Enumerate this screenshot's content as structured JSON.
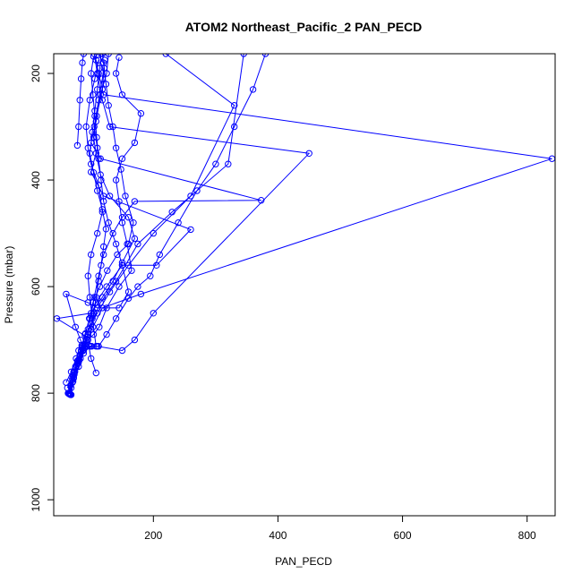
{
  "chart_data": {
    "type": "line",
    "title": "ATOM2 Northeast_Pacific_2 PAN_PECD",
    "xlabel": "PAN_PECD",
    "ylabel": "Pressure (mbar)",
    "x_ticks": [
      "200",
      "400",
      "600",
      "800"
    ],
    "y_ticks": [
      "200",
      "400",
      "600",
      "800",
      "1000"
    ],
    "xlim": [
      40,
      845
    ],
    "ylim": [
      1030,
      163
    ],
    "y_reversed": true,
    "line_color": "#0000ff",
    "marker": "open-circle",
    "grid": false,
    "legend": false,
    "series": [
      {
        "points": [
          [
            65,
            800
          ],
          [
            68,
            790
          ],
          [
            72,
            760
          ],
          [
            78,
            740
          ],
          [
            85,
            710
          ],
          [
            95,
            680
          ],
          [
            110,
            650
          ],
          [
            130,
            610
          ],
          [
            160,
            560
          ],
          [
            200,
            500
          ],
          [
            260,
            430
          ],
          [
            330,
            260
          ],
          [
            220,
            163
          ]
        ]
      },
      {
        "points": [
          [
            67,
            803
          ],
          [
            70,
            780
          ],
          [
            75,
            750
          ],
          [
            80,
            720
          ],
          [
            92,
            700
          ],
          [
            100,
            670
          ],
          [
            115,
            630
          ],
          [
            140,
            590
          ],
          [
            175,
            520
          ],
          [
            230,
            460
          ],
          [
            320,
            370
          ],
          [
            345,
            163
          ]
        ]
      },
      {
        "points": [
          [
            66,
            802
          ],
          [
            72,
            770
          ],
          [
            78,
            745
          ],
          [
            85,
            715
          ],
          [
            90,
            690
          ],
          [
            98,
            660
          ],
          [
            108,
            630
          ],
          [
            125,
            600
          ],
          [
            150,
            560
          ],
          [
            205,
            560
          ],
          [
            260,
            493
          ],
          [
            120,
            430
          ],
          [
            100,
            385
          ],
          [
            110,
            340
          ],
          [
            105,
            300
          ],
          [
            112,
            250
          ],
          [
            118,
            210
          ],
          [
            122,
            175
          ]
        ]
      },
      {
        "points": [
          [
            64,
            800
          ],
          [
            70,
            775
          ],
          [
            76,
            752
          ],
          [
            82,
            728
          ],
          [
            90,
            712
          ],
          [
            95,
            690
          ],
          [
            100,
            655
          ],
          [
            105,
            620
          ],
          [
            112,
            580
          ],
          [
            120,
            540
          ],
          [
            135,
            500
          ],
          [
            150,
            470
          ],
          [
            170,
            440
          ],
          [
            373,
            438
          ],
          [
            115,
            360
          ],
          [
            100,
            330
          ],
          [
            108,
            290
          ],
          [
            115,
            240
          ],
          [
            125,
            200
          ],
          [
            128,
            163
          ]
        ]
      },
      {
        "points": [
          [
            68,
            803
          ],
          [
            73,
            765
          ],
          [
            79,
            738
          ],
          [
            86,
            712
          ],
          [
            91,
            688
          ],
          [
            97,
            660
          ],
          [
            103,
            630
          ],
          [
            114,
            600
          ],
          [
            126,
            570
          ],
          [
            142,
            540
          ],
          [
            160,
            520
          ],
          [
            168,
            480
          ],
          [
            155,
            430
          ],
          [
            148,
            380
          ],
          [
            140,
            340
          ],
          [
            135,
            300
          ],
          [
            128,
            260
          ],
          [
            124,
            220
          ],
          [
            120,
            180
          ]
        ]
      },
      {
        "points": [
          [
            63,
            800
          ],
          [
            69,
            770
          ],
          [
            77,
            748
          ],
          [
            84,
            720
          ],
          [
            93,
            700
          ],
          [
            103,
            676
          ],
          [
            118,
            640
          ],
          [
            180,
            614
          ],
          [
            840,
            360
          ],
          [
            120,
            240
          ],
          [
            112,
            200
          ],
          [
            108,
            175
          ]
        ]
      },
      {
        "points": [
          [
            66,
            801
          ],
          [
            71,
            778
          ],
          [
            80,
            750
          ],
          [
            88,
            725
          ],
          [
            99,
            712
          ],
          [
            110,
            712
          ],
          [
            150,
            720
          ],
          [
            170,
            700
          ],
          [
            200,
            650
          ],
          [
            450,
            350
          ],
          [
            130,
            300
          ],
          [
            118,
            250
          ],
          [
            110,
            200
          ],
          [
            105,
            163
          ]
        ]
      },
      {
        "points": [
          [
            65,
            802
          ],
          [
            74,
            760
          ],
          [
            83,
            735
          ],
          [
            92,
            712
          ],
          [
            101,
            712
          ],
          [
            112,
            712
          ],
          [
            125,
            690
          ],
          [
            140,
            660
          ],
          [
            160,
            622
          ],
          [
            175,
            600
          ],
          [
            195,
            580
          ],
          [
            210,
            540
          ],
          [
            240,
            480
          ],
          [
            270,
            420
          ],
          [
            300,
            370
          ],
          [
            330,
            300
          ],
          [
            360,
            230
          ],
          [
            380,
            163
          ]
        ]
      },
      {
        "points": [
          [
            60,
            780
          ],
          [
            68,
            760
          ],
          [
            76,
            735
          ],
          [
            86,
            712
          ],
          [
            97,
            712
          ],
          [
            108,
            712
          ],
          [
            102,
            660
          ],
          [
            98,
            620
          ],
          [
            95,
            580
          ],
          [
            100,
            540
          ],
          [
            110,
            500
          ],
          [
            118,
            460
          ],
          [
            112,
            410
          ],
          [
            100,
            370
          ],
          [
            95,
            340
          ],
          [
            92,
            300
          ],
          [
            98,
            250
          ],
          [
            106,
            210
          ],
          [
            112,
            175
          ]
        ]
      },
      {
        "points": [
          [
            62,
            790
          ],
          [
            71,
            768
          ],
          [
            80,
            742
          ],
          [
            88,
            720
          ],
          [
            83,
            700
          ],
          [
            75,
            676
          ],
          [
            60,
            614
          ],
          [
            95,
            630
          ],
          [
            110,
            640
          ],
          [
            145,
            640
          ],
          [
            160,
            610
          ],
          [
            150,
            560
          ],
          [
            140,
            520
          ],
          [
            128,
            480
          ],
          [
            120,
            440
          ],
          [
            116,
            400
          ],
          [
            112,
            360
          ],
          [
            109,
            320
          ],
          [
            106,
            280
          ],
          [
            103,
            240
          ],
          [
            100,
            200
          ],
          [
            104,
            168
          ]
        ]
      },
      {
        "points": [
          [
            64,
            800
          ],
          [
            67,
            785
          ],
          [
            73,
            762
          ],
          [
            81,
            738
          ],
          [
            89,
            715
          ],
          [
            94,
            695
          ],
          [
            45,
            660
          ],
          [
            100,
            650
          ],
          [
            118,
            620
          ],
          [
            135,
            590
          ],
          [
            150,
            555
          ],
          [
            170,
            510
          ],
          [
            160,
            470
          ],
          [
            130,
            430
          ],
          [
            115,
            390
          ],
          [
            108,
            350
          ],
          [
            104,
            320
          ],
          [
            109,
            280
          ],
          [
            118,
            230
          ],
          [
            121,
            190
          ],
          [
            118,
            163
          ]
        ]
      },
      {
        "points": [
          [
            66,
            802
          ],
          [
            72,
            772
          ],
          [
            79,
            744
          ],
          [
            87,
            716
          ],
          [
            95,
            700
          ],
          [
            104,
            690
          ],
          [
            113,
            676
          ],
          [
            125,
            640
          ],
          [
            145,
            600
          ],
          [
            165,
            570
          ],
          [
            158,
            520
          ],
          [
            150,
            480
          ],
          [
            145,
            440
          ],
          [
            140,
            400
          ],
          [
            150,
            360
          ],
          [
            170,
            330
          ],
          [
            180,
            275
          ],
          [
            150,
            240
          ],
          [
            140,
            200
          ],
          [
            145,
            170
          ]
        ]
      },
      {
        "points": [
          [
            108,
            762
          ],
          [
            100,
            735
          ],
          [
            96,
            710
          ],
          [
            100,
            680
          ],
          [
            104,
            650
          ],
          [
            108,
            620
          ],
          [
            112,
            590
          ],
          [
            116,
            560
          ],
          [
            120,
            525
          ],
          [
            124,
            492
          ],
          [
            118,
            455
          ],
          [
            110,
            420
          ],
          [
            104,
            386
          ],
          [
            98,
            350
          ],
          [
            102,
            310
          ],
          [
            106,
            270
          ],
          [
            110,
            230
          ],
          [
            114,
            190
          ],
          [
            116,
            163
          ]
        ]
      },
      {
        "points": [
          [
            78,
            335
          ],
          [
            80,
            300
          ],
          [
            82,
            250
          ],
          [
            84,
            210
          ],
          [
            86,
            180
          ],
          [
            88,
            163
          ]
        ]
      }
    ]
  }
}
